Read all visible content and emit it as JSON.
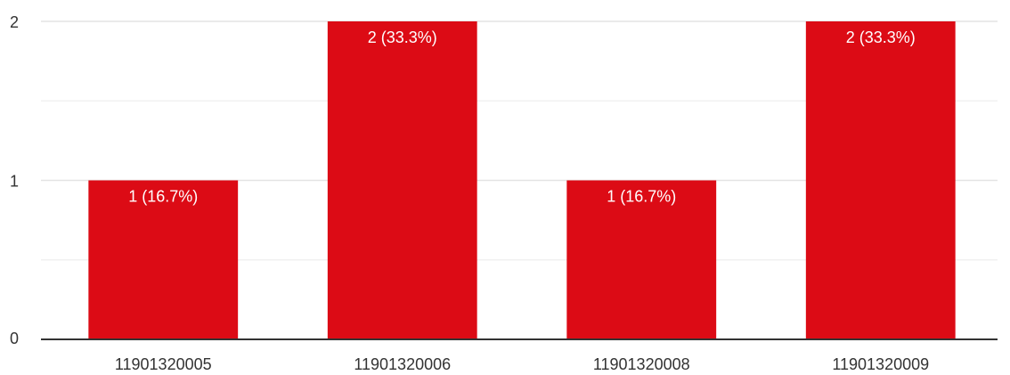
{
  "chart_data": {
    "type": "bar",
    "categories": [
      "11901320005",
      "11901320006",
      "11901320008",
      "11901320009"
    ],
    "values": [
      1,
      2,
      1,
      2
    ],
    "value_labels": [
      "1 (16.7%)",
      "2 (33.3%)",
      "1 (16.7%)",
      "2 (33.3%)"
    ],
    "color": "#dc0b15",
    "ylim": [
      0,
      2
    ],
    "yticks": [
      0,
      1,
      2
    ],
    "minor_yticks": [
      0.5,
      1.5
    ],
    "grid": true
  }
}
